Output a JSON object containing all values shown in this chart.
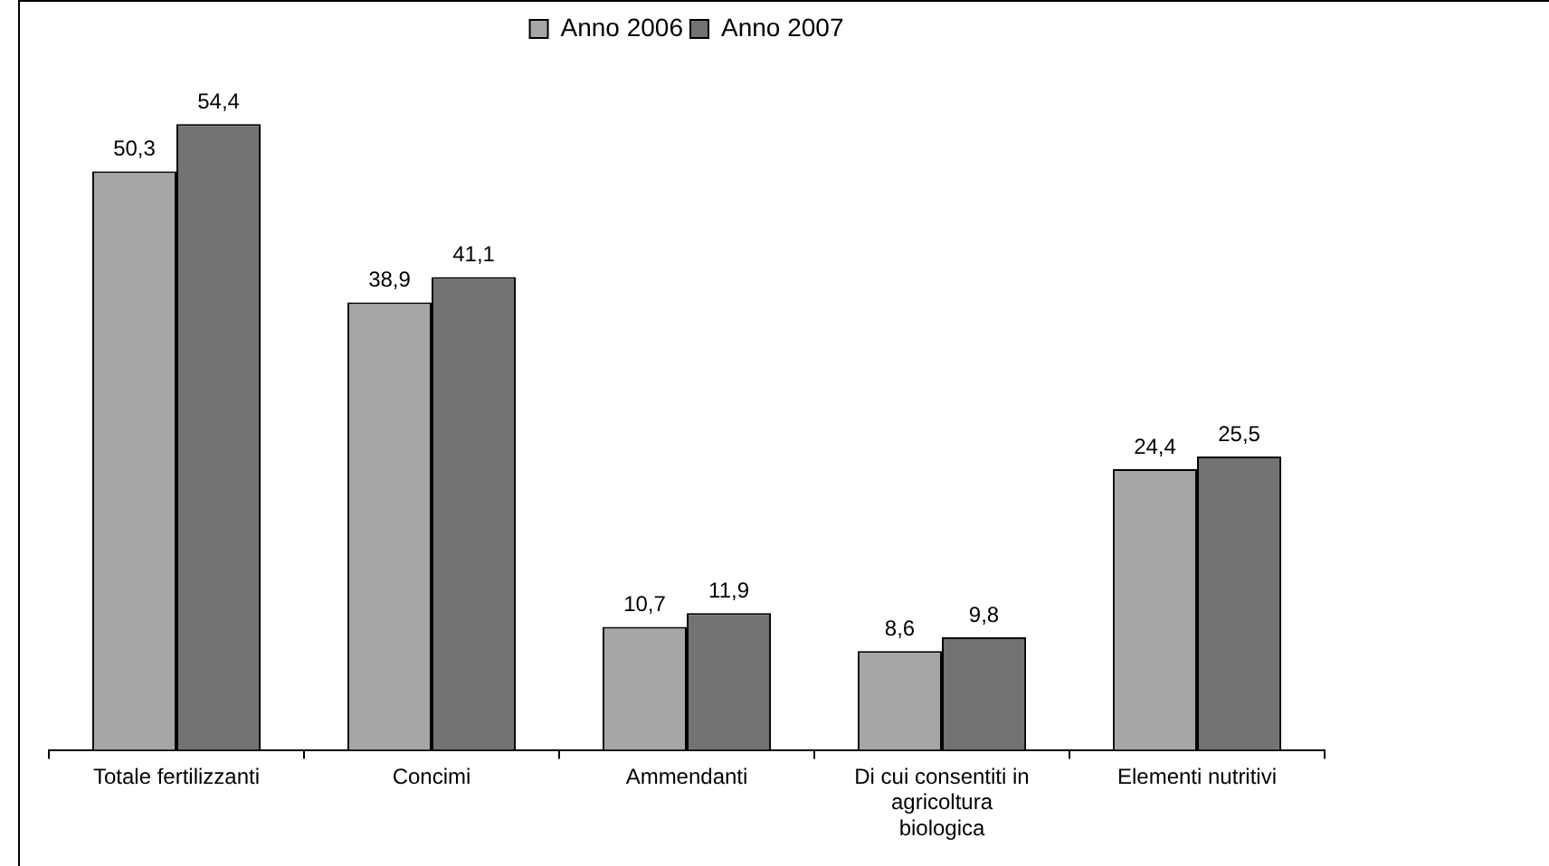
{
  "chart_data": {
    "type": "bar",
    "categories": [
      "Totale fertilizzanti",
      "Concimi",
      "Ammendanti",
      "Di cui consentiti in agricoltura biologica",
      "Elementi nutritivi"
    ],
    "series": [
      {
        "name": "Anno 2006",
        "color": "#a6a6a6",
        "values": [
          50.3,
          38.9,
          10.7,
          8.6,
          24.4
        ],
        "value_labels": [
          "50,3",
          "38,9",
          "10,7",
          "8,6",
          "24,4"
        ]
      },
      {
        "name": "Anno 2007",
        "color": "#737373",
        "values": [
          54.4,
          41.1,
          11.9,
          9.8,
          25.5
        ],
        "value_labels": [
          "54,4",
          "41,1",
          "11,9",
          "9,8",
          "25,5"
        ]
      }
    ],
    "legend": "top",
    "tick_labels": "x"
  }
}
